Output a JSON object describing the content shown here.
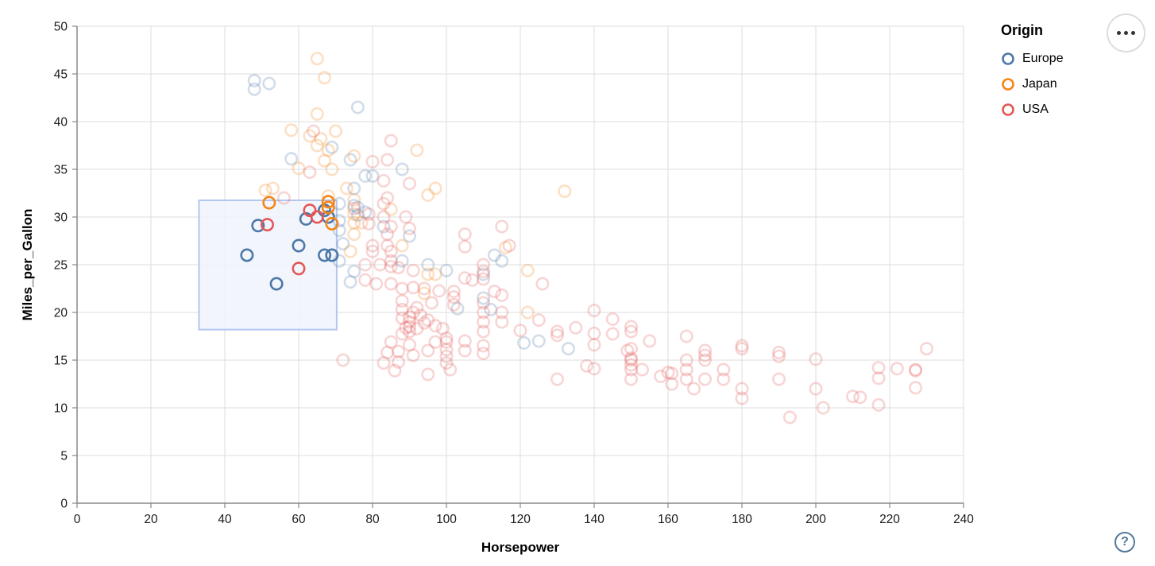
{
  "legend": {
    "title": "Origin",
    "items": [
      {
        "label": "Europe",
        "color": "#4c78a8"
      },
      {
        "label": "Japan",
        "color": "#f58518"
      },
      {
        "label": "USA",
        "color": "#e45756"
      }
    ]
  },
  "controls": {
    "menu_button_icon": "ellipsis",
    "help_button_label": "?"
  },
  "chart_data": {
    "type": "scatter",
    "title": "",
    "xlabel": "Horsepower",
    "ylabel": "Miles_per_Gallon",
    "xlim": [
      0,
      240
    ],
    "ylim": [
      0,
      50
    ],
    "x_ticks": [
      0,
      20,
      40,
      60,
      80,
      100,
      120,
      140,
      160,
      180,
      200,
      220,
      240
    ],
    "y_ticks": [
      0,
      5,
      10,
      15,
      20,
      25,
      30,
      35,
      40,
      45,
      50
    ],
    "grid": true,
    "legend_position": "top-right",
    "point_style": {
      "radius": 7.2,
      "stroke_width": 2.6,
      "faded_opacity": 0.25
    },
    "brush": {
      "x_extent": [
        33,
        70.3
      ],
      "y_extent": [
        18.2,
        31.75
      ],
      "fill": "#f0f4fc",
      "fill_opacity": 0.85,
      "stroke": "#b3c7f0"
    },
    "series": [
      {
        "name": "Europe",
        "color": "#4c78a8",
        "selected": [
          [
            49,
            29.1
          ],
          [
            62,
            29.8
          ],
          [
            67,
            30.7
          ],
          [
            68,
            30
          ],
          [
            60,
            27
          ],
          [
            46,
            26
          ],
          [
            67,
            26
          ],
          [
            69,
            26
          ],
          [
            54,
            23
          ]
        ],
        "points": [
          [
            48,
            44.3
          ],
          [
            48,
            43.4
          ],
          [
            52,
            44
          ],
          [
            76,
            41.5
          ],
          [
            74,
            36
          ],
          [
            88,
            35
          ],
          [
            78,
            34.3
          ],
          [
            80,
            34.3
          ],
          [
            58,
            36.1
          ],
          [
            69,
            37.3
          ],
          [
            75,
            33
          ],
          [
            76,
            31
          ],
          [
            78,
            30.5
          ],
          [
            75,
            31.2
          ],
          [
            71,
            31.4
          ],
          [
            71,
            29.6
          ],
          [
            71,
            28.6
          ],
          [
            72,
            27.2
          ],
          [
            71,
            25.4
          ],
          [
            75,
            24.3
          ],
          [
            74,
            23.2
          ],
          [
            90,
            28
          ],
          [
            83,
            29
          ],
          [
            76,
            30.2
          ],
          [
            88,
            25.4
          ],
          [
            95,
            25
          ],
          [
            100,
            24.4
          ],
          [
            110,
            24
          ],
          [
            113,
            26
          ],
          [
            115,
            25.4
          ],
          [
            103,
            20.4
          ],
          [
            110,
            21.5
          ],
          [
            112,
            20.3
          ],
          [
            125,
            17
          ],
          [
            121,
            16.8
          ],
          [
            133,
            16.2
          ]
        ]
      },
      {
        "name": "Japan",
        "color": "#f58518",
        "selected": [
          [
            52,
            31.5
          ],
          [
            68,
            31.6
          ],
          [
            68,
            31
          ],
          [
            69,
            29.3
          ]
        ],
        "points": [
          [
            65,
            46.6
          ],
          [
            67,
            44.6
          ],
          [
            65,
            40.8
          ],
          [
            70,
            39
          ],
          [
            58,
            39.1
          ],
          [
            63,
            38.5
          ],
          [
            66,
            38.2
          ],
          [
            92,
            37
          ],
          [
            65,
            37.5
          ],
          [
            68,
            37
          ],
          [
            75,
            36.4
          ],
          [
            69,
            35
          ],
          [
            67,
            35.9
          ],
          [
            60,
            35.1
          ],
          [
            53,
            33
          ],
          [
            51,
            32.8
          ],
          [
            73,
            33
          ],
          [
            97,
            33
          ],
          [
            95,
            32.3
          ],
          [
            132,
            32.7
          ],
          [
            75,
            31.8
          ],
          [
            68,
            32.2
          ],
          [
            75,
            30.3
          ],
          [
            85,
            30.8
          ],
          [
            75,
            29.4
          ],
          [
            77,
            29.4
          ],
          [
            75,
            28.2
          ],
          [
            88,
            27
          ],
          [
            74,
            26.4
          ],
          [
            116,
            26.8
          ],
          [
            122,
            24.4
          ],
          [
            95,
            24
          ],
          [
            97,
            24
          ],
          [
            94,
            22
          ],
          [
            122,
            20
          ]
        ]
      },
      {
        "name": "USA",
        "color": "#e45756",
        "selected": [
          [
            51.5,
            29.2
          ],
          [
            63,
            30.7
          ],
          [
            65,
            30
          ],
          [
            60,
            24.6
          ]
        ],
        "points": [
          [
            64,
            39
          ],
          [
            63,
            34.7
          ],
          [
            85,
            38
          ],
          [
            84,
            36
          ],
          [
            80,
            35.8
          ],
          [
            83,
            33.8
          ],
          [
            90,
            33.5
          ],
          [
            84,
            32
          ],
          [
            56,
            32
          ],
          [
            83,
            31.4
          ],
          [
            75,
            30.9
          ],
          [
            83,
            30
          ],
          [
            89,
            30
          ],
          [
            79,
            30.3
          ],
          [
            85,
            29
          ],
          [
            79,
            29.3
          ],
          [
            90,
            28.8
          ],
          [
            84,
            28.2
          ],
          [
            105,
            28.2
          ],
          [
            84,
            27
          ],
          [
            80,
            27
          ],
          [
            105,
            26.9
          ],
          [
            115,
            29
          ],
          [
            117,
            27
          ],
          [
            85,
            26.4
          ],
          [
            80,
            26.4
          ],
          [
            85,
            25.4
          ],
          [
            110,
            25
          ],
          [
            110,
            24.3
          ],
          [
            110,
            23.5
          ],
          [
            126,
            23
          ],
          [
            102,
            22.2
          ],
          [
            113,
            22.2
          ],
          [
            115,
            21.8
          ],
          [
            78,
            25
          ],
          [
            82,
            25
          ],
          [
            85,
            24.8
          ],
          [
            87,
            24.7
          ],
          [
            91,
            24.4
          ],
          [
            78,
            23.4
          ],
          [
            81,
            23
          ],
          [
            85,
            23
          ],
          [
            88,
            22.5
          ],
          [
            91,
            22.6
          ],
          [
            94,
            22.5
          ],
          [
            98,
            22.25
          ],
          [
            102,
            21.6
          ],
          [
            102,
            20.8
          ],
          [
            105,
            23.6
          ],
          [
            107,
            23.4
          ],
          [
            96,
            21
          ],
          [
            88,
            21.2
          ],
          [
            88,
            20.3
          ],
          [
            88,
            19.4
          ],
          [
            89,
            18.4
          ],
          [
            88,
            17.75
          ],
          [
            90,
            19
          ],
          [
            90,
            19.5
          ],
          [
            90,
            18.5
          ],
          [
            91,
            20
          ],
          [
            92,
            20.5
          ],
          [
            90,
            18
          ],
          [
            93,
            19.7
          ],
          [
            94,
            18.9
          ],
          [
            92,
            18.3
          ],
          [
            95,
            19.2
          ],
          [
            97,
            18.6
          ],
          [
            99,
            18.3
          ],
          [
            100,
            17.3
          ],
          [
            100,
            16.9
          ],
          [
            100,
            16.1
          ],
          [
            100,
            15.4
          ],
          [
            100,
            14.7
          ],
          [
            101,
            14
          ],
          [
            105,
            17
          ],
          [
            105,
            16
          ],
          [
            110,
            16.5
          ],
          [
            110,
            15.7
          ],
          [
            110,
            18
          ],
          [
            110,
            21
          ],
          [
            110,
            20
          ],
          [
            110,
            19
          ],
          [
            115,
            20
          ],
          [
            115,
            19
          ],
          [
            85,
            16.9
          ],
          [
            84,
            15.8
          ],
          [
            83,
            14.7
          ],
          [
            87,
            15.9
          ],
          [
            87,
            14.8
          ],
          [
            86,
            13.9
          ],
          [
            90,
            16.6
          ],
          [
            91,
            15.5
          ],
          [
            95,
            16
          ],
          [
            97,
            16.9
          ],
          [
            95,
            13.5
          ],
          [
            72,
            15
          ],
          [
            120,
            18.1
          ],
          [
            125,
            19.2
          ],
          [
            130,
            18
          ],
          [
            130,
            17.6
          ],
          [
            135,
            18.4
          ],
          [
            140,
            20.2
          ],
          [
            140,
            17.8
          ],
          [
            140,
            16.6
          ],
          [
            138,
            14.4
          ],
          [
            140,
            14.1
          ],
          [
            145,
            19.3
          ],
          [
            145,
            17.75
          ],
          [
            149,
            16
          ],
          [
            150,
            18.5
          ],
          [
            150,
            18
          ],
          [
            150,
            16.2
          ],
          [
            150,
            15.2
          ],
          [
            150,
            15
          ],
          [
            150,
            14.5
          ],
          [
            150,
            14
          ],
          [
            150,
            13
          ],
          [
            153,
            14
          ],
          [
            155,
            17
          ],
          [
            158,
            13.3
          ],
          [
            160,
            13.7
          ],
          [
            161,
            13.6
          ],
          [
            161,
            12.5
          ],
          [
            130,
            13
          ],
          [
            165,
            17.5
          ],
          [
            165,
            15
          ],
          [
            165,
            14
          ],
          [
            165,
            13
          ],
          [
            167,
            12
          ],
          [
            170,
            16
          ],
          [
            170,
            15.5
          ],
          [
            170,
            15
          ],
          [
            170,
            13
          ],
          [
            175,
            14
          ],
          [
            175,
            13
          ],
          [
            180,
            16.5
          ],
          [
            180,
            16.2
          ],
          [
            180,
            12
          ],
          [
            180,
            11
          ],
          [
            190,
            15.8
          ],
          [
            190,
            15.4
          ],
          [
            190,
            13
          ],
          [
            193,
            9
          ],
          [
            200,
            15.1
          ],
          [
            200,
            12
          ],
          [
            202,
            10
          ],
          [
            210,
            11.2
          ],
          [
            212,
            11.1
          ],
          [
            217,
            14.2
          ],
          [
            217,
            13.1
          ],
          [
            217,
            10.3
          ],
          [
            222,
            14.1
          ],
          [
            227,
            14
          ],
          [
            227,
            13.9
          ],
          [
            227,
            12.1
          ],
          [
            230,
            16.2
          ]
        ]
      }
    ]
  }
}
